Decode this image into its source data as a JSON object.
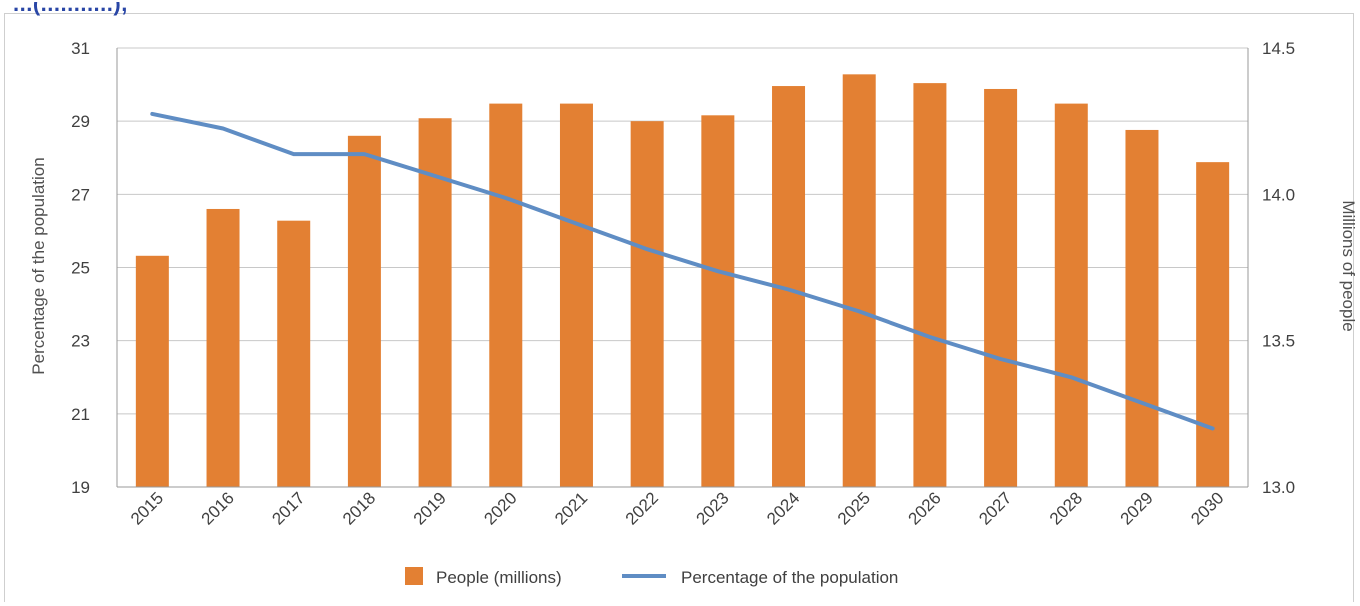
{
  "header_fragment": "...(...........),",
  "chart_data": {
    "type": "bar+line",
    "categories": [
      "2015",
      "2016",
      "2017",
      "2018",
      "2019",
      "2020",
      "2021",
      "2022",
      "2023",
      "2024",
      "2025",
      "2026",
      "2027",
      "2028",
      "2029",
      "2030"
    ],
    "series": [
      {
        "name": "People (millions)",
        "type": "bar",
        "axis": "right",
        "color": "#e38033",
        "values": [
          13.79,
          13.95,
          13.91,
          14.2,
          14.26,
          14.31,
          14.31,
          14.25,
          14.27,
          14.37,
          14.41,
          14.38,
          14.36,
          14.31,
          14.22,
          14.11
        ]
      },
      {
        "name": "Percentage of the population",
        "type": "line",
        "axis": "left",
        "color": "#5f8dc4",
        "values": [
          29.2,
          28.8,
          28.1,
          28.1,
          27.5,
          26.9,
          26.2,
          25.5,
          24.9,
          24.4,
          23.8,
          23.1,
          22.5,
          22.0,
          21.3,
          20.6
        ]
      }
    ],
    "ylabel_left": "Percentage of the population",
    "ylabel_right": "Millions of people",
    "ylim_left": [
      19,
      31
    ],
    "yticks_left": [
      "19",
      "21",
      "23",
      "25",
      "27",
      "29",
      "31"
    ],
    "ylim_right": [
      13.0,
      14.5
    ],
    "yticks_right": [
      "13.0",
      "13.5",
      "14.0",
      "14.5"
    ],
    "grid": true,
    "legend_position": "bottom"
  }
}
